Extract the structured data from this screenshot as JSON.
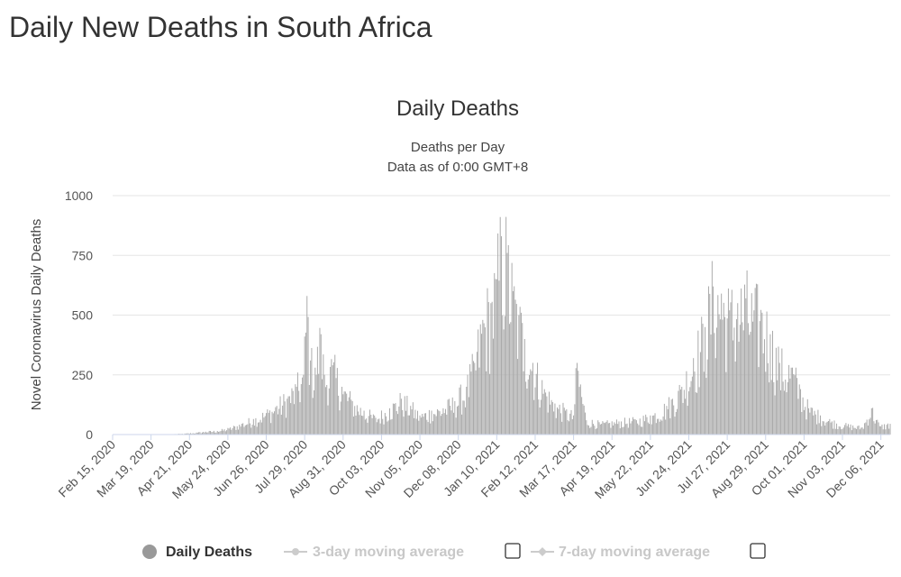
{
  "page": {
    "title": "Daily New Deaths in South Africa"
  },
  "chart_data": {
    "type": "bar",
    "title": "Daily Deaths",
    "subtitle_lines": [
      "Deaths per Day",
      "Data as of 0:00 GMT+8"
    ],
    "xlabel": "",
    "ylabel": "Novel Coronavirus Daily Deaths",
    "ylim": [
      0,
      1000
    ],
    "yticks": [
      0,
      250,
      500,
      750,
      1000
    ],
    "x_start": "2020-02-15",
    "x_end": "2021-12-14",
    "xticks": [
      "Feb 15, 2020",
      "Mar 19, 2020",
      "Apr 21, 2020",
      "May 24, 2020",
      "Jun 26, 2020",
      "Jul 29, 2020",
      "Aug 31, 2020",
      "Oct 03, 2020",
      "Nov 05, 2020",
      "Dec 08, 2020",
      "Jan 10, 2021",
      "Feb 12, 2021",
      "Mar 17, 2021",
      "Apr 19, 2021",
      "May 22, 2021",
      "Jun 24, 2021",
      "Jul 27, 2021",
      "Aug 29, 2021",
      "Oct 01, 2021",
      "Nov 03, 2021",
      "Dec 06, 2021"
    ],
    "grid": true,
    "legend_position": "bottom",
    "series": [
      {
        "name": "Daily Deaths",
        "color": "#a8a8a8",
        "visible": true,
        "points": [
          [
            "2020-03-15",
            0
          ],
          [
            "2020-04-01",
            1
          ],
          [
            "2020-04-15",
            3
          ],
          [
            "2020-04-28",
            8
          ],
          [
            "2020-05-05",
            12
          ],
          [
            "2020-05-15",
            15
          ],
          [
            "2020-05-25",
            25
          ],
          [
            "2020-06-05",
            45
          ],
          [
            "2020-06-15",
            65
          ],
          [
            "2020-06-26",
            90
          ],
          [
            "2020-07-05",
            120
          ],
          [
            "2020-07-15",
            160
          ],
          [
            "2020-07-22",
            200
          ],
          [
            "2020-07-28",
            250
          ],
          [
            "2020-07-31",
            580
          ],
          [
            "2020-08-03",
            310
          ],
          [
            "2020-08-07",
            280
          ],
          [
            "2020-08-12",
            420
          ],
          [
            "2020-08-15",
            250
          ],
          [
            "2020-08-22",
            290
          ],
          [
            "2020-08-30",
            200
          ],
          [
            "2020-09-08",
            140
          ],
          [
            "2020-09-18",
            100
          ],
          [
            "2020-09-28",
            70
          ],
          [
            "2020-10-10",
            110
          ],
          [
            "2020-10-20",
            150
          ],
          [
            "2020-10-28",
            120
          ],
          [
            "2020-11-05",
            80
          ],
          [
            "2020-11-15",
            100
          ],
          [
            "2020-11-25",
            110
          ],
          [
            "2020-12-05",
            140
          ],
          [
            "2020-12-15",
            200
          ],
          [
            "2020-12-22",
            300
          ],
          [
            "2020-12-29",
            480
          ],
          [
            "2021-01-05",
            550
          ],
          [
            "2021-01-10",
            650
          ],
          [
            "2021-01-14",
            830
          ],
          [
            "2021-01-19",
            760
          ],
          [
            "2021-01-24",
            600
          ],
          [
            "2021-01-29",
            500
          ],
          [
            "2021-02-03",
            400
          ],
          [
            "2021-02-10",
            300
          ],
          [
            "2021-02-20",
            190
          ],
          [
            "2021-03-01",
            130
          ],
          [
            "2021-03-10",
            100
          ],
          [
            "2021-03-17",
            80
          ],
          [
            "2021-03-20",
            300
          ],
          [
            "2021-03-28",
            60
          ],
          [
            "2021-04-10",
            45
          ],
          [
            "2021-04-25",
            55
          ],
          [
            "2021-05-10",
            60
          ],
          [
            "2021-05-22",
            80
          ],
          [
            "2021-06-05",
            120
          ],
          [
            "2021-06-18",
            200
          ],
          [
            "2021-06-28",
            320
          ],
          [
            "2021-07-08",
            450
          ],
          [
            "2021-07-15",
            620
          ],
          [
            "2021-07-22",
            590
          ],
          [
            "2021-07-29",
            520
          ],
          [
            "2021-08-05",
            550
          ],
          [
            "2021-08-12",
            570
          ],
          [
            "2021-08-19",
            520
          ],
          [
            "2021-08-26",
            510
          ],
          [
            "2021-09-02",
            420
          ],
          [
            "2021-09-10",
            300
          ],
          [
            "2021-09-20",
            280
          ],
          [
            "2021-09-28",
            190
          ],
          [
            "2021-10-05",
            110
          ],
          [
            "2021-10-15",
            80
          ],
          [
            "2021-10-25",
            55
          ],
          [
            "2021-11-05",
            40
          ],
          [
            "2021-11-20",
            30
          ],
          [
            "2021-11-28",
            110
          ],
          [
            "2021-12-05",
            35
          ],
          [
            "2021-12-14",
            45
          ]
        ]
      },
      {
        "name": "3-day moving average",
        "color": "#cccccc",
        "visible": false
      },
      {
        "name": "7-day moving average",
        "color": "#cccccc",
        "visible": false
      }
    ]
  }
}
